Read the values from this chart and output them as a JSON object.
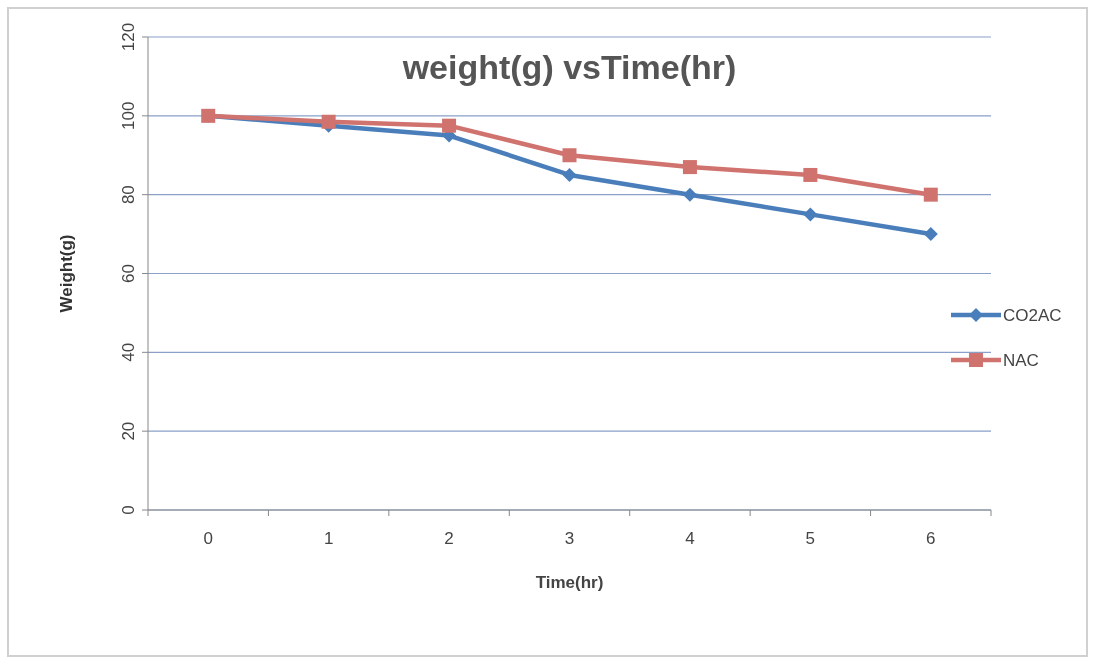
{
  "chart_data": {
    "type": "line",
    "title": "weight(g) vsTime(hr)",
    "xlabel": "Time(hr)",
    "ylabel": "Weight(g)",
    "categories": [
      "0",
      "1",
      "2",
      "3",
      "4",
      "5",
      "6"
    ],
    "series": [
      {
        "name": "CO2AC",
        "color": "#4a7ebb",
        "values": [
          100,
          97.5,
          95,
          85,
          80,
          75,
          70
        ],
        "marker": "diamond"
      },
      {
        "name": "NAC",
        "color": "#d0736e",
        "values": [
          100,
          98.5,
          97.5,
          90,
          87,
          85,
          80
        ],
        "marker": "square"
      }
    ],
    "ylim": [
      0,
      120
    ],
    "yticks": [
      0,
      20,
      40,
      60,
      80,
      100,
      120
    ],
    "grid": "y",
    "legend": "right",
    "line_style": "solid"
  }
}
